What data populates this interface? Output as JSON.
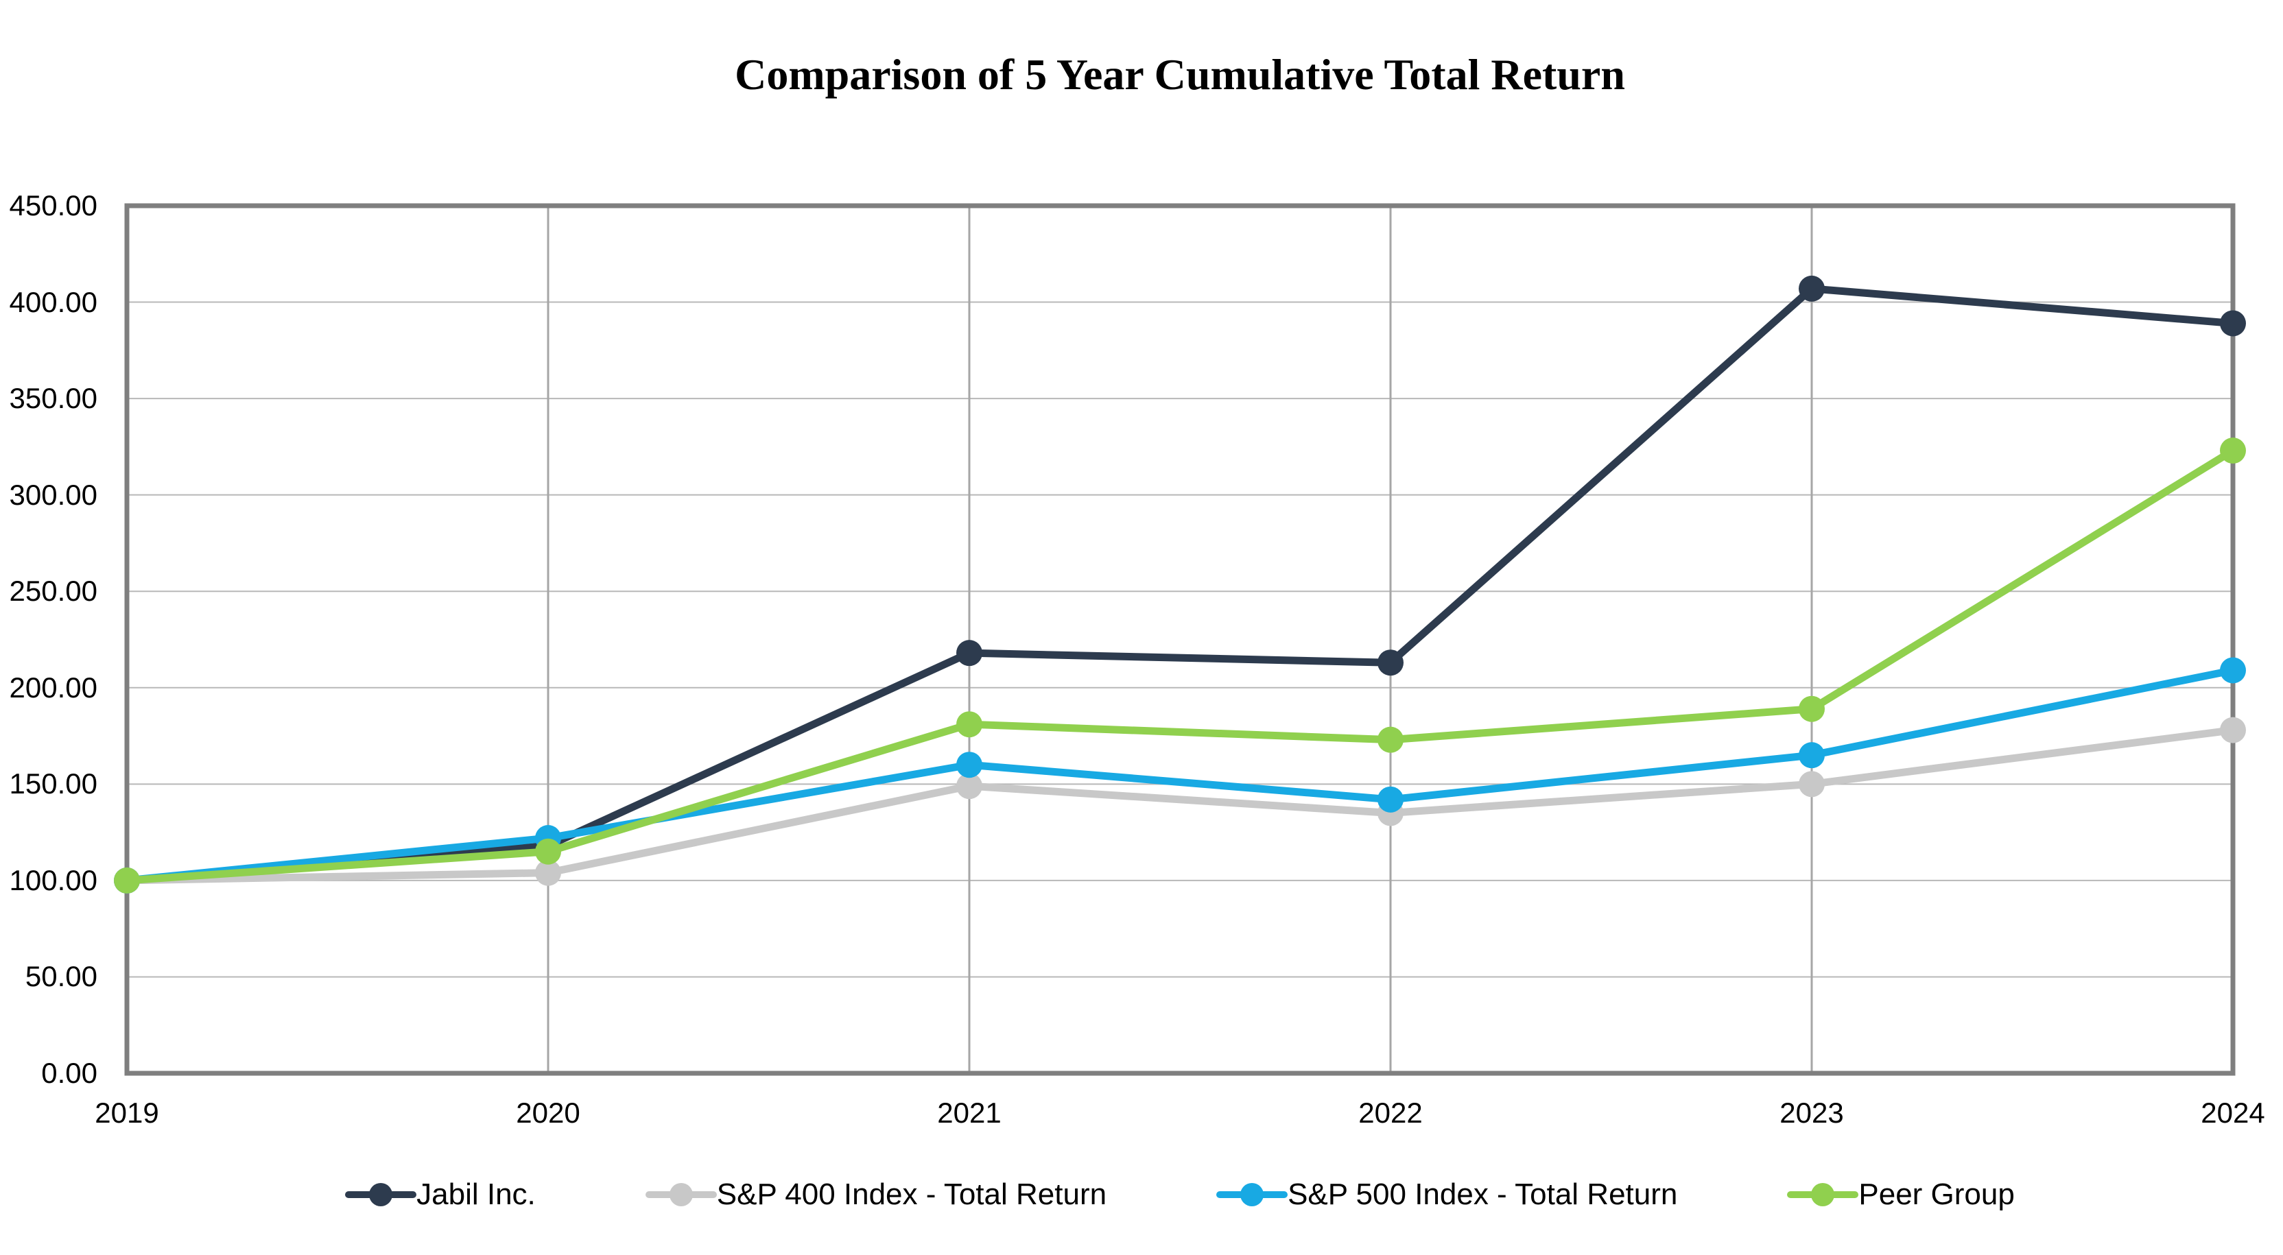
{
  "title": "Comparison of 5 Year Cumulative Total Return",
  "chart_data": {
    "type": "line",
    "x": [
      "2019",
      "2020",
      "2021",
      "2022",
      "2023",
      "2024"
    ],
    "series": [
      {
        "name": "Jabil Inc.",
        "color": "#2d3b4e",
        "values": [
          100.0,
          118.0,
          218.0,
          213.0,
          407.0,
          389.0
        ]
      },
      {
        "name": "S&P 400 Index - Total Return",
        "color": "#c8c8c8",
        "values": [
          100.0,
          104.0,
          149.0,
          135.0,
          150.0,
          178.0
        ]
      },
      {
        "name": "S&P 500 Index - Total Return",
        "color": "#18a9e3",
        "values": [
          100.0,
          122.0,
          160.0,
          142.0,
          165.0,
          209.0
        ]
      },
      {
        "name": "Peer Group",
        "color": "#90d04e",
        "values": [
          100.0,
          115.0,
          181.0,
          173.0,
          189.0,
          323.0
        ]
      }
    ],
    "ylim": [
      0,
      450
    ],
    "ytick_step": 50,
    "ytick_labels": [
      "0.00",
      "50.00",
      "100.00",
      "150.00",
      "200.00",
      "250.00",
      "300.00",
      "350.00",
      "400.00",
      "450.00"
    ],
    "grid": true,
    "legend_position": "bottom"
  },
  "colors": {
    "frame": "#7f7f7f",
    "vertical_gridline": "#a6a6a6",
    "horizontal_gridline": "#b8b8b8",
    "background": "#ffffff",
    "text": "#000000"
  }
}
